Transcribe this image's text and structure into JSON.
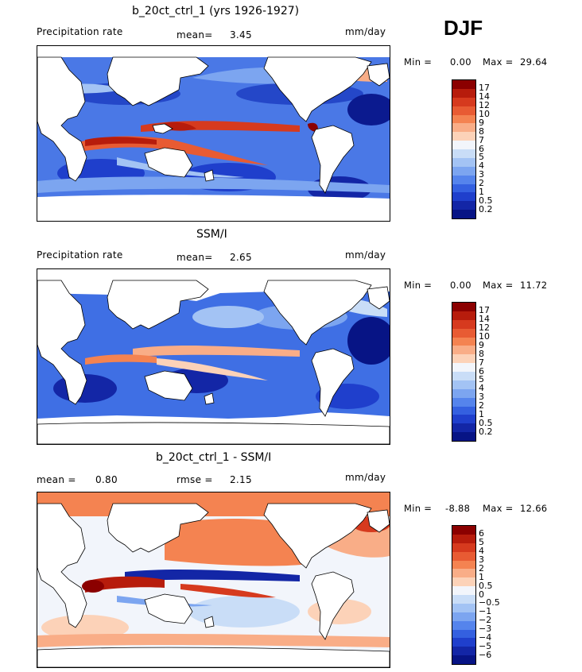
{
  "season": "DJF",
  "panels": [
    {
      "title": "b_20ct_ctrl_1 (yrs 1926-1927)",
      "left_label": "Precipitation rate",
      "stat_label": "mean=",
      "stat_value": "3.45",
      "units": "mm/day",
      "min_label": "Min =",
      "min_value": "0.00",
      "max_label": "Max =",
      "max_value": "29.64",
      "map_icon": "global-precipitation-map"
    },
    {
      "title": "SSM/I",
      "left_label": "Precipitation rate",
      "stat_label": "mean=",
      "stat_value": "2.65",
      "units": "mm/day",
      "min_label": "Min =",
      "min_value": "0.00",
      "max_label": "Max =",
      "max_value": "11.72",
      "map_icon": "global-precipitation-map"
    },
    {
      "title": "b_20ct_ctrl_1 - SSM/I",
      "left_label": "mean =",
      "left_value": "0.80",
      "stat_label": "rmse =",
      "stat_value": "2.15",
      "units": "mm/day",
      "min_label": "Min =",
      "min_value": "-8.88",
      "max_label": "Max =",
      "max_value": "12.66",
      "map_icon": "global-difference-map"
    }
  ],
  "colorbar_precip": {
    "colors": [
      "#8b0000",
      "#b71c0c",
      "#d63a1e",
      "#e85b33",
      "#f48351",
      "#f9ad87",
      "#fcd2b8",
      "#f2f5fb",
      "#c9ddf7",
      "#a3c3f4",
      "#7ca5f0",
      "#5584ec",
      "#3460e0",
      "#1f3fcc",
      "#1326a6",
      "#071485"
    ],
    "labels": [
      "17",
      "14",
      "12",
      "10",
      "9",
      "8",
      "7",
      "6",
      "5",
      "4",
      "3",
      "2",
      "1",
      "0.5",
      "0.2"
    ]
  },
  "colorbar_diff": {
    "colors": [
      "#8b0000",
      "#b71c0c",
      "#d63a1e",
      "#e85b33",
      "#f48351",
      "#f9ad87",
      "#fcd2b8",
      "#f2f5fb",
      "#c9ddf7",
      "#a3c3f4",
      "#7ca5f0",
      "#5584ec",
      "#3460e0",
      "#1f3fcc",
      "#1326a6",
      "#071485"
    ],
    "labels": [
      "6",
      "5",
      "4",
      "3",
      "2",
      "1",
      "0.5",
      "0",
      "−0.5",
      "−1",
      "−2",
      "−3",
      "−4",
      "−5",
      "−6"
    ]
  }
}
